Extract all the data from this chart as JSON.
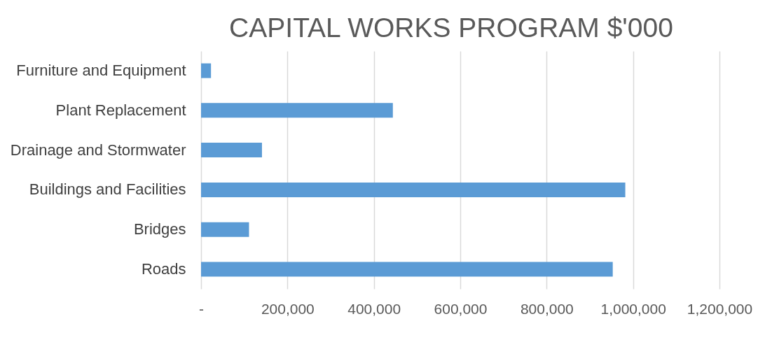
{
  "chart_data": {
    "type": "bar",
    "orientation": "horizontal",
    "title": "CAPITAL WORKS PROGRAM $'000",
    "categories": [
      "Furniture and Equipment",
      "Plant Replacement",
      "Drainage and Stormwater",
      "Buildings and Facilities",
      "Bridges",
      "Roads"
    ],
    "values": [
      23000,
      444000,
      141000,
      982000,
      111000,
      953000
    ],
    "color": "#5b9bd5",
    "xlim": [
      0,
      1200000
    ],
    "xticks": [
      {
        "value": 0,
        "label": "-"
      },
      {
        "value": 200000,
        "label": "200,000"
      },
      {
        "value": 400000,
        "label": "400,000"
      },
      {
        "value": 600000,
        "label": "600,000"
      },
      {
        "value": 800000,
        "label": "800,000"
      },
      {
        "value": 1000000,
        "label": "1,000,000"
      },
      {
        "value": 1200000,
        "label": "1,200,000"
      }
    ],
    "grid": "x"
  }
}
